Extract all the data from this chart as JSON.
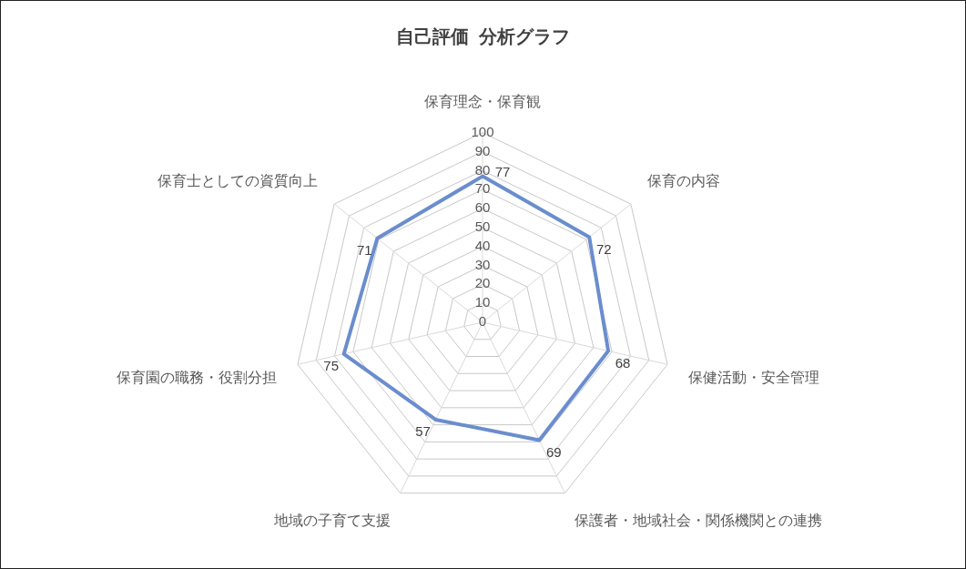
{
  "chart_data": {
    "type": "radar",
    "title": "自己評価  分析グラフ",
    "categories": [
      "保育理念・保育観",
      "保育の内容",
      "保健活動・安全管理",
      "保護者・地域社会・関係機関との連携",
      "地域の子育て支援",
      "保育園の職務・役割分担",
      "保育士としての資質向上"
    ],
    "series": [
      {
        "color": "#6a8dcd",
        "values": [
          77,
          72,
          68,
          69,
          57,
          75,
          71
        ]
      }
    ],
    "ylim": [
      0,
      100
    ],
    "yticks": [
      0,
      10,
      20,
      30,
      40,
      50,
      60,
      70,
      80,
      90,
      100
    ],
    "grid": true,
    "legend": false,
    "marker": "none",
    "line_style": "solid",
    "data_labels": true
  }
}
